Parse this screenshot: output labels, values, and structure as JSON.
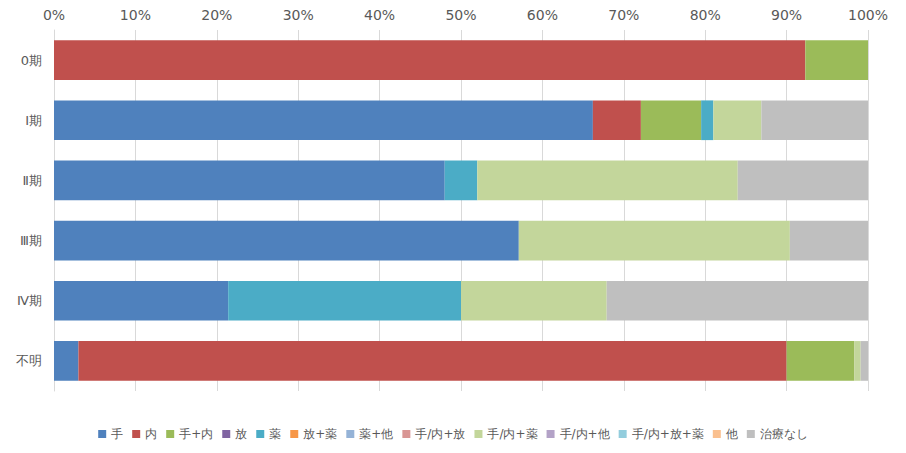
{
  "chart_data": {
    "type": "bar",
    "orientation": "horizontal",
    "stacked": true,
    "grid": true,
    "legend": "bottom",
    "categories": [
      "0期",
      "Ⅰ期",
      "Ⅱ期",
      "Ⅲ期",
      "Ⅳ期",
      "不明"
    ],
    "xlim": [
      0,
      100
    ],
    "xticks": [
      {
        "value": 0,
        "label": "0%"
      },
      {
        "value": 10,
        "label": "10%"
      },
      {
        "value": 20,
        "label": "20%"
      },
      {
        "value": 30,
        "label": "30%"
      },
      {
        "value": 40,
        "label": "40%"
      },
      {
        "value": 50,
        "label": "50%"
      },
      {
        "value": 60,
        "label": "60%"
      },
      {
        "value": 70,
        "label": "70%"
      },
      {
        "value": 80,
        "label": "80%"
      },
      {
        "value": 90,
        "label": "90%"
      },
      {
        "value": 100,
        "label": "100%"
      }
    ],
    "series": [
      {
        "name": "手",
        "color": "#4f81bd",
        "values": [
          0,
          66.2,
          48.0,
          57.1,
          21.4,
          3.0
        ]
      },
      {
        "name": "内",
        "color": "#c0504d",
        "values": [
          92.3,
          5.9,
          0,
          0,
          0,
          87.0
        ]
      },
      {
        "name": "手+内",
        "color": "#9bbb59",
        "values": [
          7.7,
          7.4,
          0,
          0,
          0,
          8.3
        ]
      },
      {
        "name": "放",
        "color": "#8064a2",
        "values": [
          0,
          0,
          0,
          0,
          0,
          0
        ]
      },
      {
        "name": "薬",
        "color": "#4bacc6",
        "values": [
          0,
          1.5,
          4.0,
          0,
          28.6,
          0
        ]
      },
      {
        "name": "放+薬",
        "color": "#f79646",
        "values": [
          0,
          0,
          0,
          0,
          0,
          0
        ]
      },
      {
        "name": "薬+他",
        "color": "#95b3d7",
        "values": [
          0,
          0,
          0,
          0,
          0,
          0
        ]
      },
      {
        "name": "手/内+放",
        "color": "#d99694",
        "values": [
          0,
          0,
          0,
          0,
          0,
          0
        ]
      },
      {
        "name": "手/内+薬",
        "color": "#c3d69b",
        "values": [
          0,
          5.9,
          32.0,
          33.3,
          17.9,
          0.8
        ]
      },
      {
        "name": "手/内+他",
        "color": "#b3a2c7",
        "values": [
          0,
          0,
          0,
          0,
          0,
          0
        ]
      },
      {
        "name": "手/内+放+薬",
        "color": "#93cddd",
        "values": [
          0,
          0,
          0,
          0,
          0,
          0
        ]
      },
      {
        "name": "他",
        "color": "#fac08f",
        "values": [
          0,
          0,
          0,
          0,
          0,
          0
        ]
      },
      {
        "name": "治療なし",
        "color": "#bfbfbf",
        "values": [
          0,
          13.1,
          16.0,
          9.6,
          32.1,
          0.9
        ]
      }
    ]
  }
}
